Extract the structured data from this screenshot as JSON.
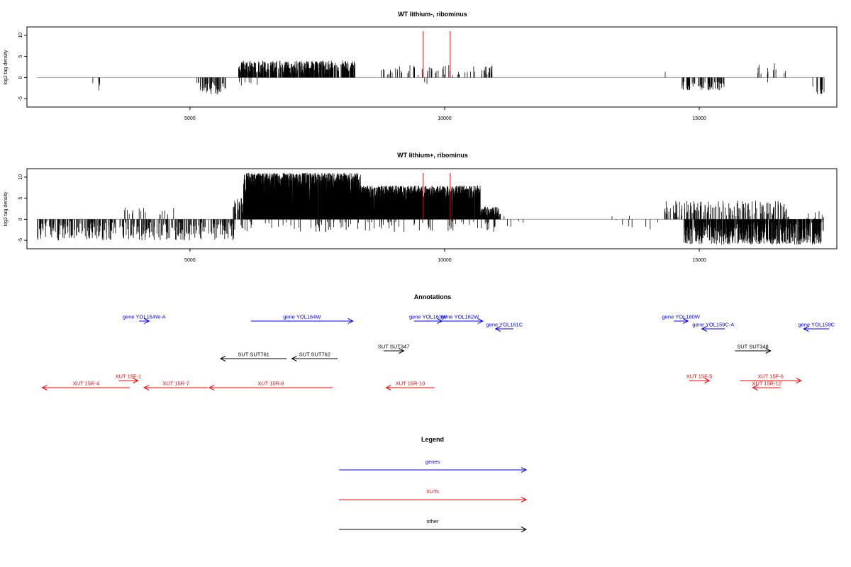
{
  "chart_data": [
    {
      "type": "bar",
      "title": "WT lithium-, ribominus",
      "ylabel": "log2 tag density",
      "xlim": [
        1800,
        17700
      ],
      "ylim": [
        -7,
        12
      ],
      "x_ticks": [
        5000,
        10000,
        15000
      ],
      "y_ticks": [
        -5,
        0,
        5,
        10
      ],
      "red_markers": [
        {
          "x": 9580,
          "y": 11
        },
        {
          "x": 10110,
          "y": 11
        }
      ],
      "segments": [
        {
          "start": 3050,
          "end": 3300,
          "density": 0.02,
          "min": -4,
          "max": -1
        },
        {
          "start": 5050,
          "end": 5200,
          "density": 0.02,
          "min": -1.5,
          "max": -0.5
        },
        {
          "start": 5200,
          "end": 5700,
          "density": 0.1,
          "min": -4,
          "max": -1
        },
        {
          "start": 5950,
          "end": 8250,
          "density": 0.2,
          "min": 1,
          "max": 4
        },
        {
          "start": 5950,
          "end": 6500,
          "density": 0.01,
          "min": -2,
          "max": -1
        },
        {
          "start": 8750,
          "end": 11000,
          "density": 0.03,
          "min": 0.5,
          "max": 3
        },
        {
          "start": 9600,
          "end": 9700,
          "density": 0.02,
          "min": -2.5,
          "max": -1
        },
        {
          "start": 14250,
          "end": 14350,
          "density": 0.01,
          "min": 1,
          "max": 2
        },
        {
          "start": 14650,
          "end": 15500,
          "density": 0.08,
          "min": -3,
          "max": -1
        },
        {
          "start": 16100,
          "end": 16700,
          "density": 0.02,
          "min": 0.5,
          "max": 3.5
        },
        {
          "start": 16300,
          "end": 16400,
          "density": 0.01,
          "min": -2.5,
          "max": -1
        },
        {
          "start": 17200,
          "end": 17450,
          "density": 0.06,
          "min": -4,
          "max": -1
        }
      ]
    },
    {
      "type": "bar",
      "title": "WT lithium+, ribominus",
      "ylabel": "log2 tag density",
      "xlim": [
        1800,
        17700
      ],
      "ylim": [
        -7,
        12
      ],
      "x_ticks": [
        5000,
        10000,
        15000
      ],
      "y_ticks": [
        -5,
        0,
        5,
        10
      ],
      "red_markers": [
        {
          "x": 9580,
          "y": 11
        },
        {
          "x": 10110,
          "y": 11
        }
      ],
      "segments": [
        {
          "start": 2000,
          "end": 5900,
          "density": 0.08,
          "min": -5,
          "max": -0.5
        },
        {
          "start": 3600,
          "end": 4700,
          "density": 0.015,
          "min": 1,
          "max": 3
        },
        {
          "start": 5850,
          "end": 6150,
          "density": 0.1,
          "min": 1,
          "max": 5
        },
        {
          "start": 6050,
          "end": 8350,
          "density": 0.9,
          "min": 3,
          "max": 11
        },
        {
          "start": 8350,
          "end": 10700,
          "density": 0.8,
          "min": 2,
          "max": 8
        },
        {
          "start": 10700,
          "end": 11100,
          "density": 0.3,
          "min": 0.5,
          "max": 3
        },
        {
          "start": 6000,
          "end": 11000,
          "density": 0.02,
          "min": -3,
          "max": -0.5
        },
        {
          "start": 11150,
          "end": 11600,
          "density": 0.01,
          "min": -2.5,
          "max": 1.5
        },
        {
          "start": 13000,
          "end": 14200,
          "density": 0.008,
          "min": -2.5,
          "max": 1
        },
        {
          "start": 14300,
          "end": 16800,
          "density": 0.06,
          "min": 0.5,
          "max": 4.5
        },
        {
          "start": 14700,
          "end": 17400,
          "density": 0.25,
          "min": -6,
          "max": -0.5
        },
        {
          "start": 17100,
          "end": 17450,
          "density": 0.08,
          "min": -4,
          "max": 2
        }
      ]
    }
  ],
  "annotations": {
    "title": "Annotations",
    "features": [
      {
        "label": "gene YOL164W-A",
        "start": 4000,
        "end": 4200,
        "strand": "+",
        "type": "gene",
        "row": 1
      },
      {
        "label": "gene YOL164W",
        "start": 6200,
        "end": 8200,
        "strand": "+",
        "type": "gene",
        "row": 1
      },
      {
        "label": "gene YOL163W",
        "start": 9400,
        "end": 9950,
        "strand": "+",
        "type": "gene",
        "row": 1
      },
      {
        "label": "gene YOL162W",
        "start": 9850,
        "end": 10750,
        "strand": "+",
        "type": "gene",
        "row": 1
      },
      {
        "label": "gene YOL161C",
        "start": 11000,
        "end": 11350,
        "strand": "-",
        "type": "gene",
        "row": 2
      },
      {
        "label": "gene YOL160W",
        "start": 14500,
        "end": 14780,
        "strand": "+",
        "type": "gene",
        "row": 1
      },
      {
        "label": "gene YOL159C-A",
        "start": 15050,
        "end": 15500,
        "strand": "-",
        "type": "gene",
        "row": 2
      },
      {
        "label": "gene YOL159C",
        "start": 17050,
        "end": 17550,
        "strand": "-",
        "type": "gene",
        "row": 2
      },
      {
        "label": "SUT SUT347",
        "start": 8800,
        "end": 9200,
        "strand": "+",
        "type": "other",
        "row": 3
      },
      {
        "label": "SUT SUT348",
        "start": 15700,
        "end": 16400,
        "strand": "+",
        "type": "other",
        "row": 3
      },
      {
        "label": "SUT SUT761",
        "start": 5600,
        "end": 6900,
        "strand": "-",
        "type": "other",
        "row": 4
      },
      {
        "label": "SUT SUT762",
        "start": 7000,
        "end": 7900,
        "strand": "-",
        "type": "other",
        "row": 4
      },
      {
        "label": "XUT 15F-1",
        "start": 3600,
        "end": 3980,
        "strand": "+",
        "type": "XUT",
        "row": 5
      },
      {
        "label": "XUT 15F-5",
        "start": 14800,
        "end": 15200,
        "strand": "+",
        "type": "XUT",
        "row": 5
      },
      {
        "label": "XUT 15F-6",
        "start": 15800,
        "end": 17000,
        "strand": "+",
        "type": "XUT",
        "row": 5
      },
      {
        "label": "XUT 15R-4",
        "start": 2100,
        "end": 3820,
        "strand": "-",
        "type": "XUT",
        "row": 6
      },
      {
        "label": "XUT 15R-7",
        "start": 4100,
        "end": 5350,
        "strand": "-",
        "type": "XUT",
        "row": 6
      },
      {
        "label": "XUT 15R-8",
        "start": 5380,
        "end": 7800,
        "strand": "-",
        "type": "XUT",
        "row": 6
      },
      {
        "label": "XUT 15R-10",
        "start": 8850,
        "end": 9800,
        "strand": "-",
        "type": "XUT",
        "row": 6
      },
      {
        "label": "XUT 15R-12",
        "start": 16050,
        "end": 16600,
        "strand": "-",
        "type": "XUT",
        "row": 6
      }
    ]
  },
  "legend": {
    "title": "Legend",
    "items": [
      {
        "label": "genes",
        "color": "#0000ff"
      },
      {
        "label": "XUTs",
        "color": "#ff0000"
      },
      {
        "label": "other",
        "color": "#000000"
      }
    ]
  },
  "colors": {
    "gene": "#0000ff",
    "XUT": "#ff0000",
    "other": "#000000",
    "marker": "#ff0000"
  }
}
